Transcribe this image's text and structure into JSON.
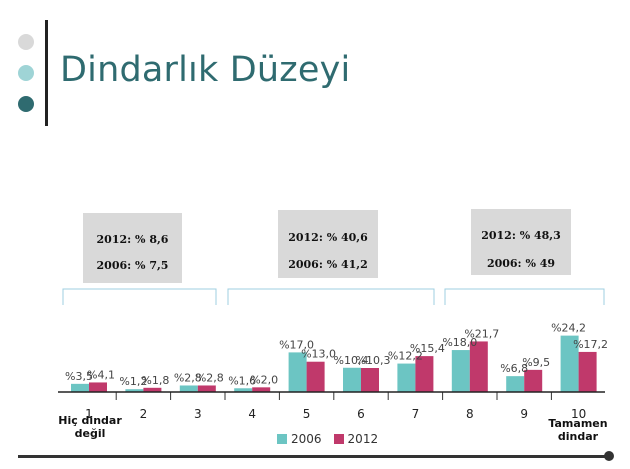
{
  "slide": {
    "title": "Dindarlık Düzeyi",
    "dot_colors": [
      "#d9d9d9",
      "#9fd4d6",
      "#2f6b70"
    ]
  },
  "summary_boxes": [
    {
      "line1": "2012: % 8,6",
      "line2": "2006: % 7,5"
    },
    {
      "line1": "2012: % 40,6",
      "line2": "2006: % 41,2"
    },
    {
      "line1": "2012: % 48,3",
      "line2": "2006: % 49"
    }
  ],
  "end_labels": {
    "left_line1": "Hiç dindar",
    "left_line2": "değil",
    "right_line1": "Tamamen",
    "right_line2": "dindar"
  },
  "chart_data": {
    "type": "bar",
    "categories": [
      "1",
      "2",
      "3",
      "4",
      "5",
      "6",
      "7",
      "8",
      "9",
      "10"
    ],
    "series": [
      {
        "name": "2006",
        "color": "#6cc5c3",
        "values": [
          3.5,
          1.2,
          2.8,
          1.6,
          17.0,
          10.4,
          12.2,
          18.0,
          6.8,
          24.2
        ],
        "labels": [
          "%3,5",
          "%1,2",
          "%2,8",
          "%1,6",
          "%17,0",
          "%10,4",
          "%12,2",
          "%18,0",
          "%6,8",
          "%24,2"
        ]
      },
      {
        "name": "2012",
        "color": "#c0396b",
        "values": [
          4.1,
          1.8,
          2.8,
          2.0,
          13.0,
          10.3,
          15.4,
          21.7,
          9.5,
          17.2
        ],
        "labels": [
          "%4,1",
          "%1,8",
          "%2,8",
          "%2,0",
          "%13,0",
          "%10,3",
          "%15,4",
          "%21,7",
          "%9,5",
          "%17,2"
        ]
      }
    ],
    "legend_position": "bottom",
    "grid": false
  }
}
